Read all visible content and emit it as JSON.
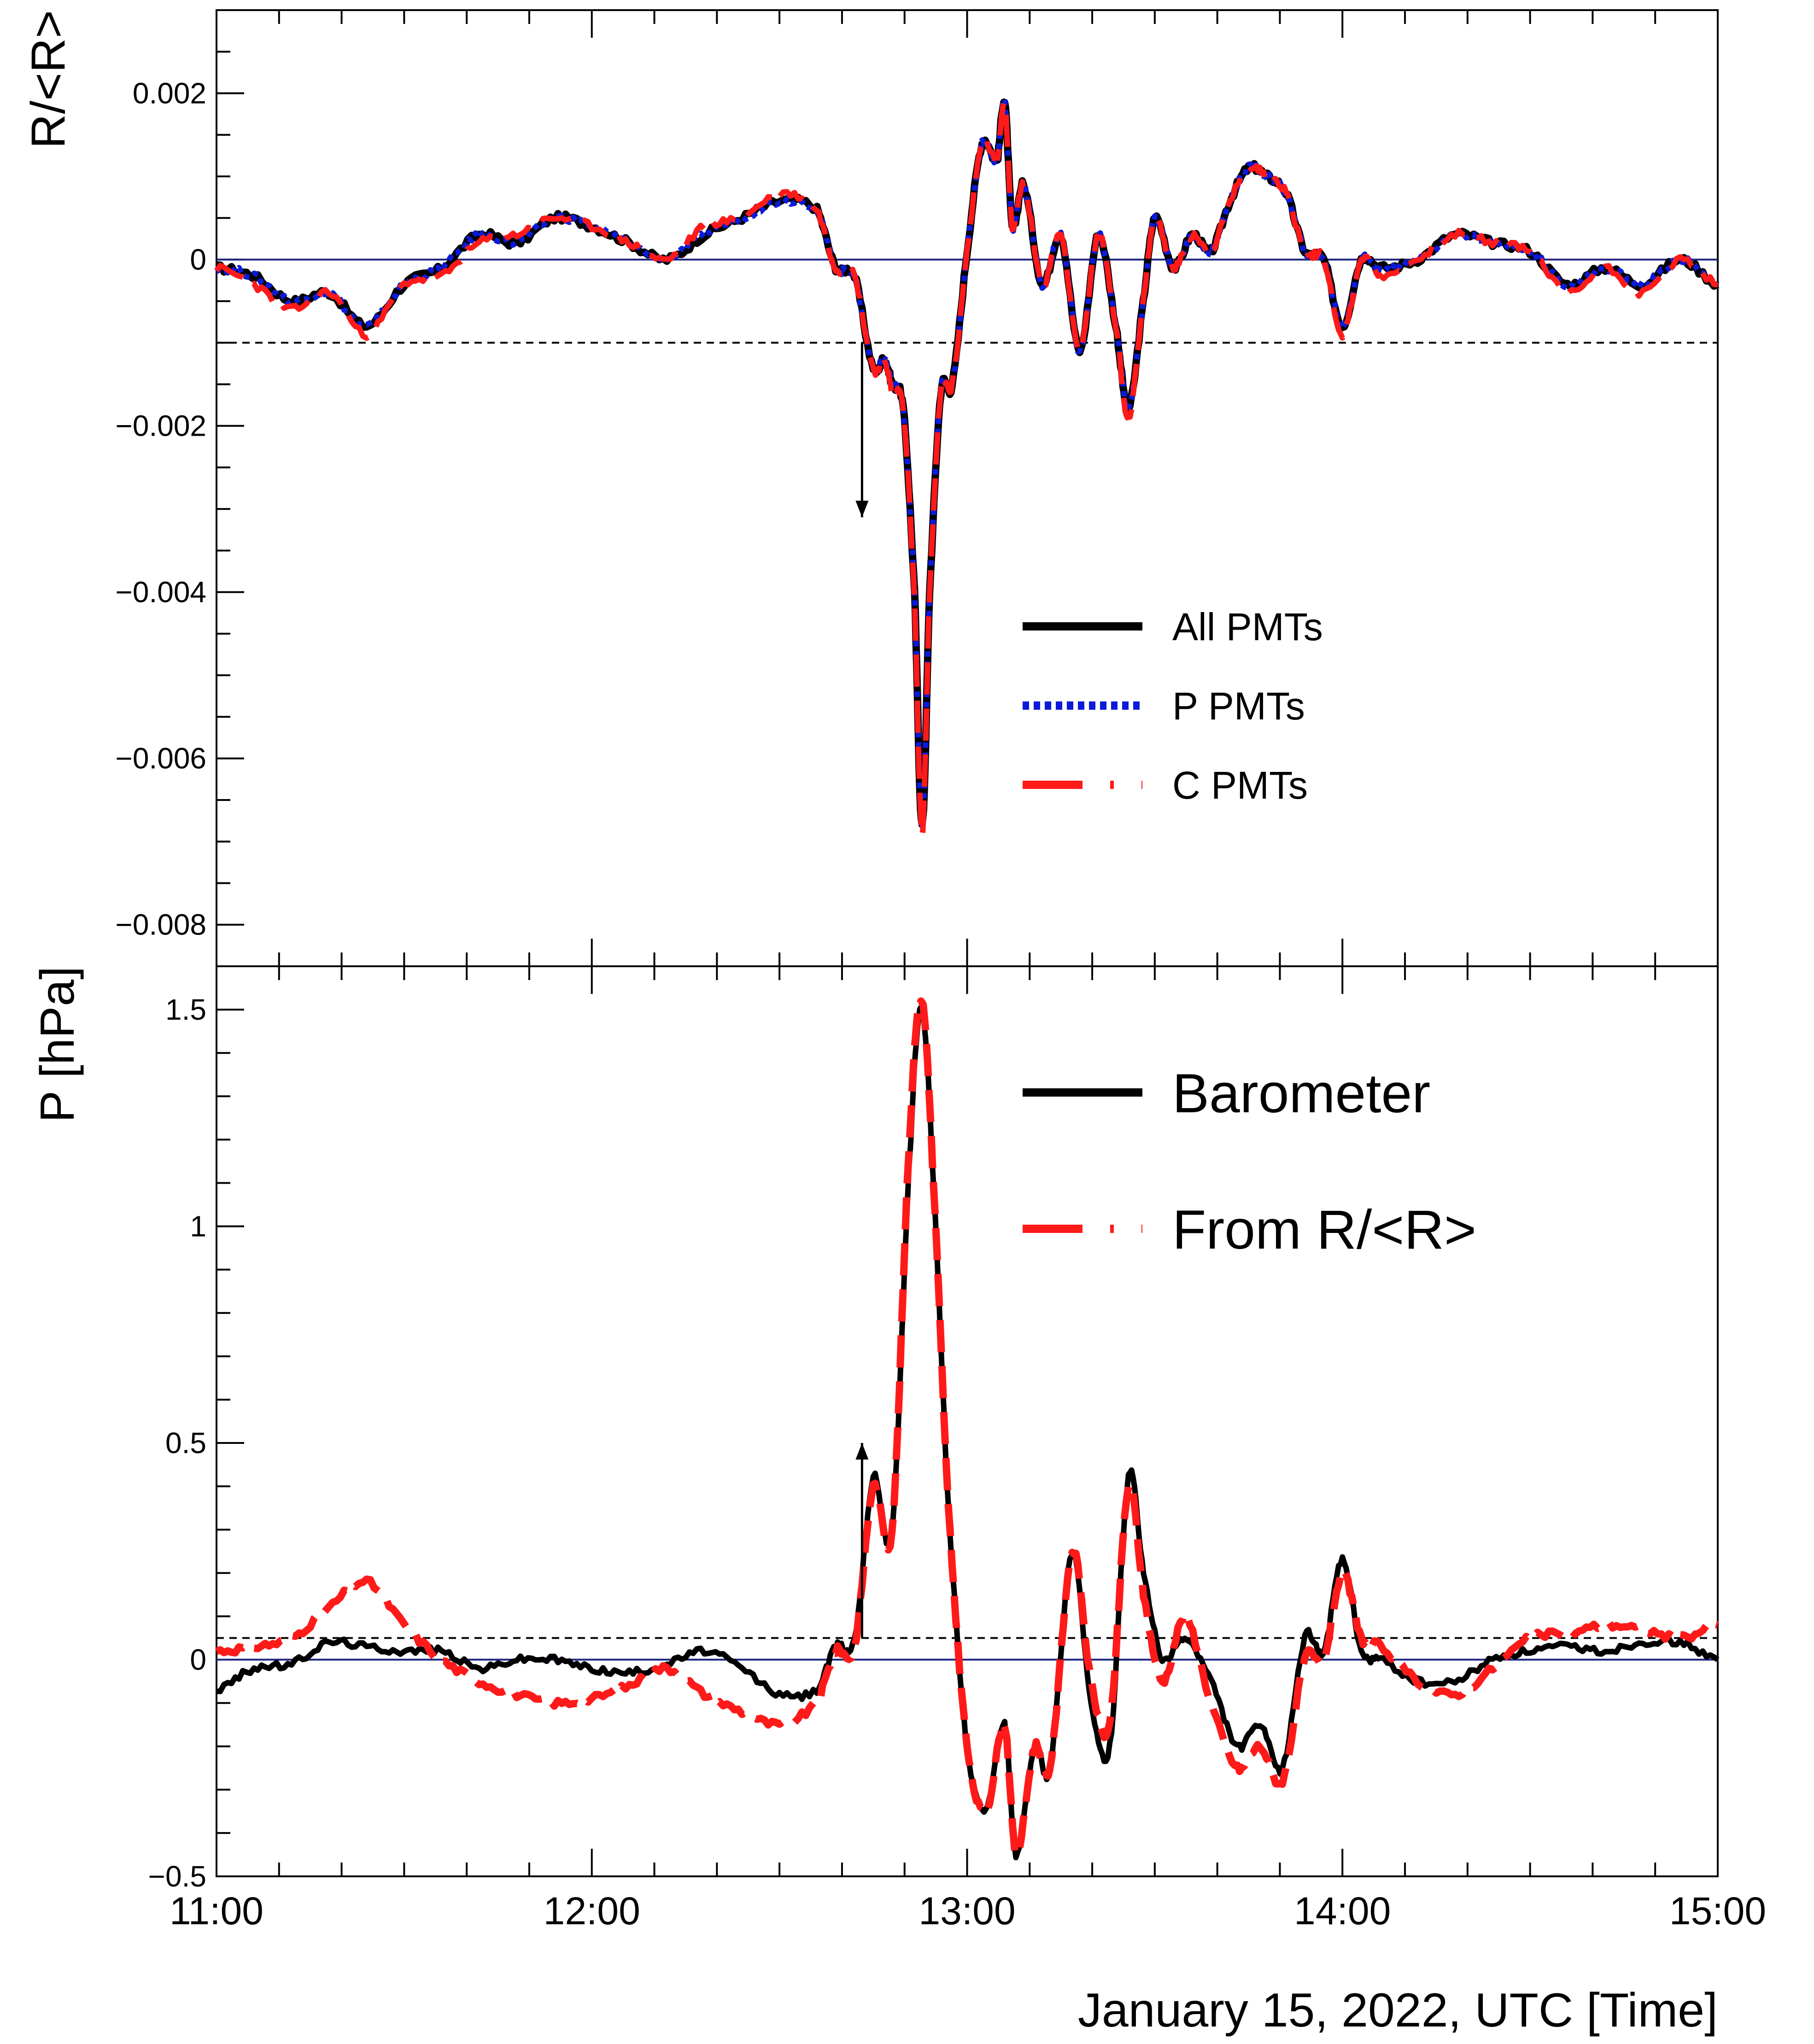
{
  "figure": {
    "xlabel": "January 15, 2022, UTC [Time]",
    "x_range_hours": [
      11,
      15
    ],
    "x_tick_labels": [
      {
        "hour": 11,
        "label": "11:00"
      },
      {
        "hour": 12,
        "label": "12:00"
      },
      {
        "hour": 13,
        "label": "13:00"
      },
      {
        "hour": 14,
        "label": "14:00"
      },
      {
        "hour": 15,
        "label": "15:00"
      }
    ]
  },
  "chart_data": [
    {
      "type": "line",
      "ylabel": "R/<R>",
      "ylim": [
        -0.0085,
        0.003
      ],
      "y_tick_labels": [
        {
          "value": 0.002,
          "label": "0.002"
        },
        {
          "value": 0,
          "label": "0"
        },
        {
          "value": -0.002,
          "label": "−0.002"
        },
        {
          "value": -0.004,
          "label": "−0.004"
        },
        {
          "value": -0.006,
          "label": "−0.006"
        },
        {
          "value": -0.008,
          "label": "−0.008"
        }
      ],
      "reference_lines": [
        {
          "y": 0,
          "style": "solid",
          "color": "#1a237e"
        },
        {
          "y": -0.001,
          "style": "dashed",
          "color": "#000000"
        }
      ],
      "arrow": {
        "x": 12.72,
        "y_from": -0.001,
        "y_to": -0.0031,
        "direction": "down"
      },
      "legend": [
        {
          "label": "All PMTs",
          "color": "#000000",
          "style": "solid"
        },
        {
          "label": "P PMTs",
          "color": "#0b1bd9",
          "style": "dotted"
        },
        {
          "label": "C PMTs",
          "color": "#ff1a1a",
          "style": "dashed"
        }
      ],
      "legend_position": "center-right",
      "x": [
        11.0,
        11.1,
        11.2,
        11.3,
        11.4,
        11.5,
        11.6,
        11.7,
        11.8,
        11.9,
        12.0,
        12.1,
        12.2,
        12.3,
        12.4,
        12.5,
        12.6,
        12.65,
        12.7,
        12.75,
        12.78,
        12.8,
        12.83,
        12.86,
        12.88,
        12.9,
        12.93,
        12.96,
        13.0,
        13.04,
        13.08,
        13.1,
        13.12,
        13.15,
        13.2,
        13.25,
        13.3,
        13.35,
        13.4,
        13.43,
        13.47,
        13.5,
        13.55,
        13.6,
        13.65,
        13.7,
        13.75,
        13.8,
        13.85,
        13.9,
        13.95,
        14.0,
        14.05,
        14.1,
        14.2,
        14.3,
        14.4,
        14.5,
        14.6,
        14.7,
        14.8,
        14.9,
        15.0
      ],
      "series": [
        {
          "name": "All PMTs",
          "values": [
            -0.0001,
            -0.0002,
            -0.0005,
            -0.0004,
            -0.0008,
            -0.0003,
            -0.0001,
            0.0003,
            0.0002,
            0.0005,
            0.0004,
            0.0002,
            0.0,
            0.0003,
            0.0005,
            0.0007,
            0.0006,
            -0.0001,
            -0.0002,
            -0.0013,
            -0.0012,
            -0.0015,
            -0.0018,
            -0.004,
            -0.0068,
            -0.004,
            -0.0016,
            -0.0015,
            0.0001,
            0.0014,
            0.0012,
            0.0019,
            0.0004,
            0.0009,
            -0.0003,
            0.0003,
            -0.0011,
            0.0003,
            -0.0009,
            -0.0018,
            -0.0005,
            0.0005,
            -0.0001,
            0.0003,
            0.0001,
            0.0007,
            0.0011,
            0.001,
            0.0008,
            0.0001,
            0.0,
            -0.0008,
            0.0,
            -0.0001,
            0.0,
            0.0003,
            0.0002,
            0.0001,
            -0.0003,
            -0.0001,
            -0.0003,
            0.0,
            -0.0003
          ]
        },
        {
          "name": "P PMTs",
          "values": [
            -0.0001,
            -0.0002,
            -0.0005,
            -0.0004,
            -0.0008,
            -0.0003,
            -0.0001,
            0.0003,
            0.0002,
            0.0005,
            0.0004,
            0.0002,
            0.0,
            0.0003,
            0.0005,
            0.0007,
            0.0006,
            -0.0001,
            -0.0002,
            -0.0013,
            -0.0012,
            -0.0015,
            -0.0018,
            -0.004,
            -0.0068,
            -0.004,
            -0.0016,
            -0.0015,
            0.0001,
            0.0014,
            0.0012,
            0.0019,
            0.0004,
            0.0009,
            -0.0003,
            0.0003,
            -0.0011,
            0.0003,
            -0.0009,
            -0.0018,
            -0.0005,
            0.0005,
            -0.0001,
            0.0003,
            0.0001,
            0.0007,
            0.0011,
            0.001,
            0.0008,
            0.0001,
            0.0,
            -0.0008,
            0.0,
            -0.0001,
            0.0,
            0.0003,
            0.0002,
            0.0001,
            -0.0003,
            -0.0001,
            -0.0003,
            0.0,
            -0.0003
          ]
        },
        {
          "name": "C PMTs",
          "values": [
            -0.0001,
            -0.0003,
            -0.0006,
            -0.0004,
            -0.0009,
            -0.0003,
            -0.0002,
            0.0002,
            0.0003,
            0.0005,
            0.0004,
            0.0002,
            0.0,
            0.0004,
            0.0005,
            0.0008,
            0.0006,
            -0.0001,
            -0.0002,
            -0.0013,
            -0.0012,
            -0.0016,
            -0.0018,
            -0.0041,
            -0.0069,
            -0.004,
            -0.0016,
            -0.0015,
            0.0001,
            0.0014,
            0.0012,
            0.0019,
            0.0004,
            0.0009,
            -0.0003,
            0.0003,
            -0.0011,
            0.0003,
            -0.0009,
            -0.0019,
            -0.0005,
            0.0005,
            -0.0001,
            0.0003,
            0.0001,
            0.0007,
            0.0011,
            0.001,
            0.0008,
            0.0001,
            0.0,
            -0.0009,
            0.0,
            -0.0002,
            0.0,
            0.0003,
            0.0002,
            0.0001,
            -0.0004,
            -0.0001,
            -0.0004,
            0.0,
            -0.0003
          ]
        }
      ]
    },
    {
      "type": "line",
      "ylabel": "P [hPa]",
      "ylim": [
        -0.5,
        1.6
      ],
      "y_tick_labels": [
        {
          "value": 1.5,
          "label": "1.5"
        },
        {
          "value": 1,
          "label": "1"
        },
        {
          "value": 0.5,
          "label": "0.5"
        },
        {
          "value": 0,
          "label": "0"
        },
        {
          "value": -0.5,
          "label": "−0.5"
        }
      ],
      "reference_lines": [
        {
          "y": 0,
          "style": "solid",
          "color": "#1a237e"
        },
        {
          "y": 0.05,
          "style": "dashed",
          "color": "#000000"
        }
      ],
      "arrow": {
        "x": 12.72,
        "y_from": 0.05,
        "y_to": 0.5,
        "direction": "up"
      },
      "legend": [
        {
          "label": "Barometer",
          "color": "#000000",
          "style": "solid"
        },
        {
          "label": "From   R/<R>",
          "color": "#ff1a1a",
          "style": "dashed"
        }
      ],
      "legend_position": "top-right",
      "x": [
        11.0,
        11.1,
        11.2,
        11.3,
        11.4,
        11.5,
        11.6,
        11.7,
        11.8,
        11.9,
        12.0,
        12.1,
        12.2,
        12.3,
        12.4,
        12.5,
        12.6,
        12.65,
        12.7,
        12.75,
        12.8,
        12.85,
        12.88,
        12.91,
        12.95,
        13.0,
        13.05,
        13.1,
        13.13,
        13.18,
        13.22,
        13.28,
        13.33,
        13.38,
        13.43,
        13.47,
        13.52,
        13.58,
        13.65,
        13.72,
        13.78,
        13.84,
        13.9,
        13.95,
        14.0,
        14.05,
        14.1,
        14.2,
        14.3,
        14.4,
        14.5,
        14.6,
        14.7,
        14.8,
        14.9,
        15.0
      ],
      "series": [
        {
          "name": "Barometer",
          "values": [
            -0.07,
            -0.02,
            -0.01,
            0.04,
            0.03,
            0.02,
            0.02,
            -0.02,
            0.0,
            0.0,
            -0.02,
            -0.03,
            -0.01,
            0.02,
            -0.02,
            -0.08,
            -0.07,
            0.03,
            0.05,
            0.42,
            0.3,
            1.2,
            1.5,
            1.1,
            0.35,
            -0.2,
            -0.35,
            -0.15,
            -0.45,
            -0.2,
            -0.25,
            0.25,
            -0.1,
            -0.2,
            0.42,
            0.2,
            0.0,
            0.05,
            -0.05,
            -0.2,
            -0.15,
            -0.25,
            0.05,
            0.02,
            0.23,
            0.02,
            0.0,
            -0.05,
            -0.05,
            0.0,
            0.02,
            0.03,
            0.02,
            0.04,
            0.04,
            0.0
          ]
        },
        {
          "name": "From   R/<R>",
          "values": [
            0.02,
            0.03,
            0.05,
            0.12,
            0.18,
            0.08,
            0.0,
            -0.05,
            -0.08,
            -0.1,
            -0.09,
            -0.06,
            -0.02,
            -0.08,
            -0.12,
            -0.15,
            -0.1,
            0.02,
            0.03,
            0.4,
            0.3,
            1.25,
            1.52,
            1.1,
            0.35,
            -0.2,
            -0.35,
            -0.15,
            -0.45,
            -0.2,
            -0.25,
            0.25,
            -0.05,
            -0.15,
            0.4,
            0.15,
            -0.05,
            0.1,
            -0.1,
            -0.25,
            -0.2,
            -0.28,
            0.0,
            0.0,
            0.2,
            0.05,
            0.03,
            -0.05,
            -0.08,
            -0.02,
            0.05,
            0.06,
            0.08,
            0.07,
            0.05,
            0.08
          ]
        }
      ]
    }
  ]
}
